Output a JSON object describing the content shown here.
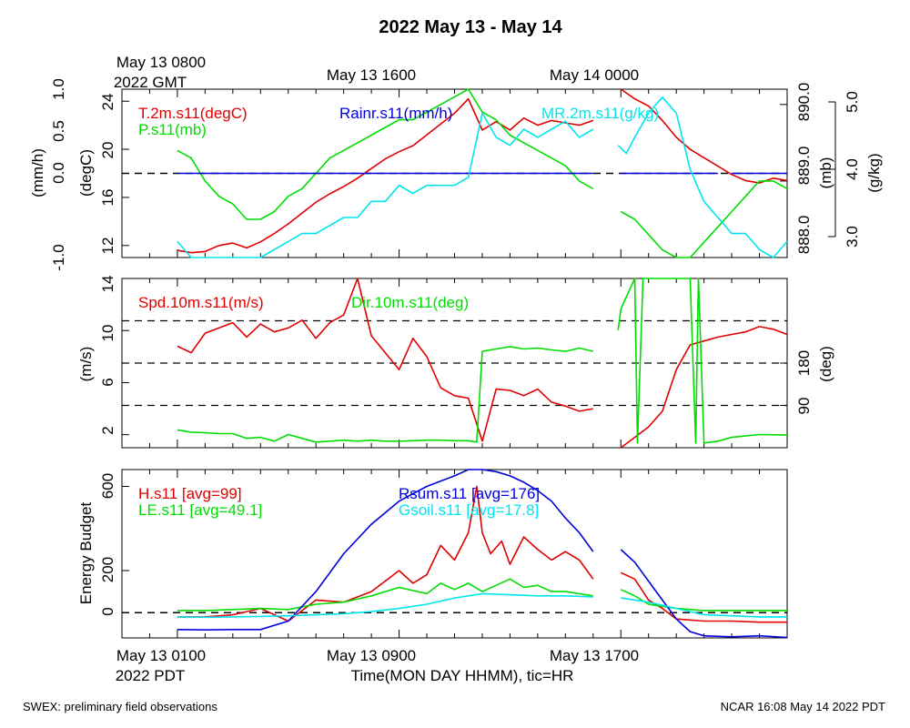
{
  "title": "2022 May 13 - May 14",
  "footer": {
    "left": "SWEX: preliminary field observations",
    "right": "NCAR 16:08 May 14 2022 PDT"
  },
  "top_axis": {
    "gmt_labels": [
      "May 13 0800",
      "May 13 1600",
      "May 14 0000"
    ],
    "gmt_year": "2022 GMT"
  },
  "bottom_axis": {
    "pdt_labels": [
      "May 13 0100",
      "May 13 0900",
      "May 13 1700"
    ],
    "pdt_year": "2022 PDT",
    "xlabel": "Time(MON DAY HHMM), tic=HR"
  },
  "colors": {
    "red": "#e00000",
    "green": "#00dd00",
    "blue": "#0000dd",
    "cyan": "#00e5ee",
    "black": "#000000"
  },
  "chart_data": [
    {
      "type": "line",
      "panel": "top",
      "x_unit": "hours since May 13 0000 PDT",
      "xlim": [
        -1,
        23
      ],
      "axes": {
        "left_outer": {
          "label": "(mm/h)",
          "ylim": [
            -1.0,
            1.0
          ],
          "ticks": [
            "-1.0",
            "0.0",
            "0.5",
            "1.0"
          ]
        },
        "left_inner": {
          "label": "(degC)",
          "ylim": [
            11,
            25
          ],
          "ticks": [
            "12",
            "16",
            "20",
            "24"
          ]
        },
        "right_inner": {
          "label": "(mb)",
          "ylim": [
            888.0,
            890.2
          ],
          "ticks": [
            "888.0",
            "889.0",
            "890.0"
          ]
        },
        "right_outer": {
          "label": "(g/kg)",
          "ylim": [
            2.9,
            5.0
          ],
          "ticks": [
            "3.0",
            "4.0",
            "5.0"
          ]
        }
      },
      "zero_line": 0.0,
      "series": [
        {
          "name": "T.2m.s11(degC)",
          "color": "red",
          "axis": "left_inner",
          "x": [
            1.0,
            1.5,
            2.0,
            2.5,
            3.0,
            3.5,
            4.0,
            4.5,
            5.0,
            5.5,
            6.0,
            6.5,
            7.0,
            7.5,
            8.0,
            8.5,
            9.0,
            9.5,
            10.0,
            10.5,
            11.0,
            11.5,
            12.0,
            12.5,
            13.0,
            13.5,
            14.0,
            14.5,
            15.0,
            15.5,
            16.0,
            null,
            17.0,
            17.5,
            18.0,
            18.5,
            19.0,
            19.5,
            20.0,
            20.5,
            21.0,
            21.5,
            22.0,
            22.5,
            23.0
          ],
          "y": [
            11.6,
            11.4,
            11.5,
            12.0,
            12.2,
            11.8,
            12.3,
            13.0,
            13.8,
            14.7,
            15.6,
            16.3,
            16.9,
            17.6,
            18.4,
            19.2,
            19.8,
            20.3,
            21.2,
            22.1,
            23.0,
            24.2,
            21.6,
            22.3,
            21.6,
            22.6,
            22.0,
            22.4,
            22.2,
            22.0,
            22.4,
            null,
            25.0,
            24.2,
            23.6,
            22.4,
            21.0,
            20.0,
            19.3,
            18.6,
            17.9,
            17.4,
            17.2,
            17.6,
            17.4
          ]
        },
        {
          "name": "P.s11(mb)",
          "color": "green",
          "axis": "right_inner",
          "x": [
            1.0,
            1.5,
            2.0,
            2.5,
            3.0,
            3.5,
            4.0,
            4.5,
            5.0,
            5.5,
            6.0,
            6.5,
            7.0,
            7.5,
            8.0,
            8.5,
            9.0,
            9.5,
            10.0,
            10.5,
            11.0,
            11.5,
            12.0,
            12.5,
            13.0,
            13.5,
            14.0,
            14.5,
            15.0,
            15.5,
            16.0,
            null,
            17.0,
            17.5,
            18.0,
            18.5,
            19.0,
            19.5,
            20.0,
            20.5,
            21.0,
            21.5,
            22.0,
            22.5,
            23.0
          ],
          "y": [
            889.4,
            889.3,
            889.0,
            888.8,
            888.7,
            888.5,
            888.5,
            888.6,
            888.8,
            888.9,
            889.1,
            889.3,
            889.4,
            889.5,
            889.6,
            889.7,
            889.8,
            889.8,
            889.9,
            890.0,
            890.1,
            890.2,
            889.9,
            889.8,
            889.6,
            889.5,
            889.4,
            889.3,
            889.2,
            889.0,
            888.9,
            null,
            888.6,
            888.5,
            888.3,
            888.1,
            887.9,
            888.0,
            888.2,
            888.4,
            888.6,
            888.8,
            889.0,
            889.0,
            888.9
          ]
        },
        {
          "name": "Rainr.s11(mm/h)",
          "color": "blue",
          "axis": "left_outer",
          "x": [
            1.0,
            16.0,
            null,
            17.0,
            20.5,
            null,
            21.0,
            23.0
          ],
          "y": [
            0.0,
            0.0,
            null,
            0.0,
            0.0,
            null,
            0.0,
            0.0
          ]
        },
        {
          "name": "MR.2m.s11(g/kg)",
          "color": "cyan",
          "axis": "right_outer",
          "x": [
            1.0,
            1.5,
            2.0,
            2.5,
            3.0,
            3.5,
            4.0,
            4.5,
            5.0,
            5.5,
            6.0,
            6.5,
            7.0,
            7.5,
            8.0,
            8.5,
            9.0,
            9.5,
            10.0,
            10.5,
            11.0,
            11.5,
            12.0,
            12.5,
            13.0,
            13.5,
            14.0,
            14.5,
            15.0,
            15.5,
            16.0,
            null,
            16.9,
            17.2,
            17.5,
            18.0,
            18.5,
            19.0,
            19.5,
            20.0,
            20.5,
            21.0,
            21.5,
            22.0,
            22.5,
            23.0
          ],
          "y": [
            3.1,
            2.9,
            2.8,
            2.7,
            2.8,
            2.8,
            2.9,
            3.0,
            3.1,
            3.2,
            3.2,
            3.3,
            3.4,
            3.4,
            3.6,
            3.6,
            3.8,
            3.7,
            3.8,
            3.8,
            3.8,
            3.9,
            4.7,
            4.4,
            4.3,
            4.5,
            4.4,
            4.5,
            4.6,
            4.4,
            4.5,
            null,
            4.3,
            4.2,
            4.4,
            4.7,
            4.9,
            4.7,
            4.0,
            3.6,
            3.4,
            3.2,
            3.2,
            3.0,
            2.9,
            3.1
          ]
        }
      ]
    },
    {
      "type": "line",
      "panel": "middle",
      "x_unit": "hours since May 13 0000 PDT",
      "xlim": [
        -1,
        23
      ],
      "axes": {
        "left": {
          "label": "(m/s)",
          "ylim": [
            1,
            14
          ],
          "ticks": [
            "2",
            "6",
            "10",
            "14"
          ]
        },
        "right": {
          "label": "(deg)",
          "ylim": [
            0,
            360
          ],
          "ticks": [
            "90",
            "180"
          ]
        }
      },
      "dashed_lines_deg": [
        90,
        180,
        270
      ],
      "series": [
        {
          "name": "Spd.10m.s11(m/s)",
          "color": "red",
          "axis": "left",
          "x": [
            1.0,
            1.5,
            2.0,
            2.5,
            3.0,
            3.5,
            4.0,
            4.5,
            5.0,
            5.5,
            6.0,
            6.5,
            7.0,
            7.5,
            8.0,
            8.5,
            9.0,
            9.5,
            10.0,
            10.5,
            11.0,
            11.5,
            12.0,
            12.5,
            13.0,
            13.5,
            14.0,
            14.5,
            15.0,
            15.5,
            16.0,
            null,
            17.0,
            17.5,
            18.0,
            18.5,
            19.0,
            19.5,
            20.0,
            20.5,
            21.0,
            21.5,
            22.0,
            22.5,
            23.0
          ],
          "y": [
            8.8,
            8.3,
            9.8,
            10.2,
            10.6,
            9.5,
            10.5,
            9.9,
            10.2,
            10.8,
            9.4,
            10.6,
            11.2,
            14.0,
            9.6,
            8.3,
            7.0,
            9.4,
            8.0,
            5.6,
            5.0,
            4.8,
            1.5,
            5.5,
            5.4,
            5.0,
            5.5,
            4.5,
            4.2,
            3.8,
            4.0,
            null,
            1.0,
            1.8,
            2.6,
            3.8,
            7.0,
            8.9,
            9.2,
            9.5,
            9.7,
            9.9,
            10.3,
            10.1,
            9.7
          ]
        },
        {
          "name": "Dir.10m.s11(deg)",
          "color": "green",
          "axis": "right",
          "x": [
            1.0,
            1.5,
            2.0,
            2.5,
            3.0,
            3.5,
            4.0,
            4.5,
            5.0,
            5.5,
            6.0,
            6.5,
            7.0,
            7.5,
            8.0,
            8.5,
            9.0,
            9.5,
            10.0,
            10.5,
            11.0,
            11.5,
            11.8,
            12.0,
            12.5,
            13.0,
            13.5,
            14.0,
            14.5,
            15.0,
            15.5,
            16.0,
            null,
            16.9,
            17.0,
            17.5,
            17.6,
            17.8,
            18.0,
            18.3,
            18.5,
            19.0,
            19.5,
            19.7,
            19.8,
            20.0,
            20.5,
            21.0,
            22.0,
            23.0
          ],
          "y": [
            38,
            33,
            32,
            30,
            30,
            20,
            22,
            14,
            28,
            20,
            12,
            14,
            16,
            14,
            16,
            14,
            14,
            15,
            16,
            16,
            15,
            15,
            12,
            205,
            210,
            215,
            210,
            212,
            208,
            205,
            212,
            205,
            null,
            250,
            295,
            360,
            10,
            360,
            360,
            360,
            360,
            360,
            365,
            10,
            360,
            10,
            14,
            22,
            28,
            27
          ]
        }
      ]
    },
    {
      "type": "line",
      "panel": "bottom",
      "x_unit": "hours since May 13 0000 PDT",
      "xlim": [
        -1,
        23
      ],
      "axes": {
        "left": {
          "label": "Energy Budget",
          "ylim": [
            -120,
            680
          ],
          "ticks": [
            "0",
            "200",
            "600"
          ]
        }
      },
      "zero_line": 0,
      "series": [
        {
          "name": "H.s11 [avg=99]",
          "color": "red",
          "x": [
            1,
            2,
            3,
            4,
            5,
            6,
            7,
            8,
            9,
            9.5,
            10,
            10.5,
            11,
            11.5,
            11.8,
            12,
            12.3,
            12.7,
            13,
            13.5,
            14,
            14.5,
            15,
            15.5,
            16,
            null,
            17,
            17.5,
            18,
            18.5,
            19,
            20,
            21,
            22,
            23
          ],
          "y": [
            -20,
            -20,
            -10,
            20,
            -40,
            60,
            50,
            100,
            200,
            140,
            180,
            320,
            250,
            380,
            600,
            380,
            280,
            340,
            230,
            360,
            300,
            250,
            290,
            250,
            160,
            null,
            190,
            160,
            60,
            20,
            -30,
            -40,
            -40,
            -45,
            -45
          ]
        },
        {
          "name": "LE.s11 [avg=49.1]",
          "color": "green",
          "x": [
            1,
            2,
            3,
            4,
            5,
            6,
            7,
            8,
            9,
            10,
            10.5,
            11,
            11.5,
            12,
            12.5,
            13,
            13.5,
            14,
            14.5,
            15,
            16,
            null,
            17,
            17.5,
            18,
            18.5,
            19,
            20,
            21,
            22,
            23
          ],
          "y": [
            10,
            10,
            15,
            20,
            15,
            40,
            50,
            80,
            120,
            90,
            140,
            110,
            140,
            100,
            130,
            160,
            120,
            130,
            100,
            100,
            80,
            null,
            110,
            80,
            40,
            30,
            20,
            10,
            10,
            10,
            10
          ]
        },
        {
          "name": "Rsum.s11 [avg=176]",
          "color": "blue",
          "x": [
            1,
            2,
            3,
            4,
            5,
            6,
            7,
            8,
            9,
            10,
            11,
            11.5,
            12,
            12.5,
            13,
            13.5,
            14,
            14.5,
            15,
            15.5,
            16,
            null,
            17,
            17.5,
            18,
            18.5,
            19,
            19.5,
            20,
            21,
            22,
            23
          ],
          "y": [
            -80,
            -82,
            -80,
            -80,
            -40,
            100,
            280,
            420,
            530,
            600,
            650,
            680,
            680,
            670,
            650,
            620,
            580,
            530,
            450,
            380,
            290,
            null,
            300,
            240,
            150,
            60,
            -30,
            -90,
            -110,
            -115,
            -110,
            -118
          ]
        },
        {
          "name": "Gsoil.s11 [avg=17.8]",
          "color": "cyan",
          "x": [
            1,
            2,
            3,
            4,
            5,
            6,
            7,
            8,
            9,
            10,
            11,
            12,
            13,
            14,
            15,
            16,
            null,
            17,
            18,
            19,
            20,
            21,
            22,
            23
          ],
          "y": [
            -20,
            -22,
            -20,
            -18,
            -15,
            -10,
            -5,
            5,
            20,
            40,
            70,
            90,
            85,
            80,
            80,
            75,
            null,
            70,
            50,
            20,
            -10,
            -15,
            -20,
            -20
          ]
        }
      ]
    }
  ]
}
